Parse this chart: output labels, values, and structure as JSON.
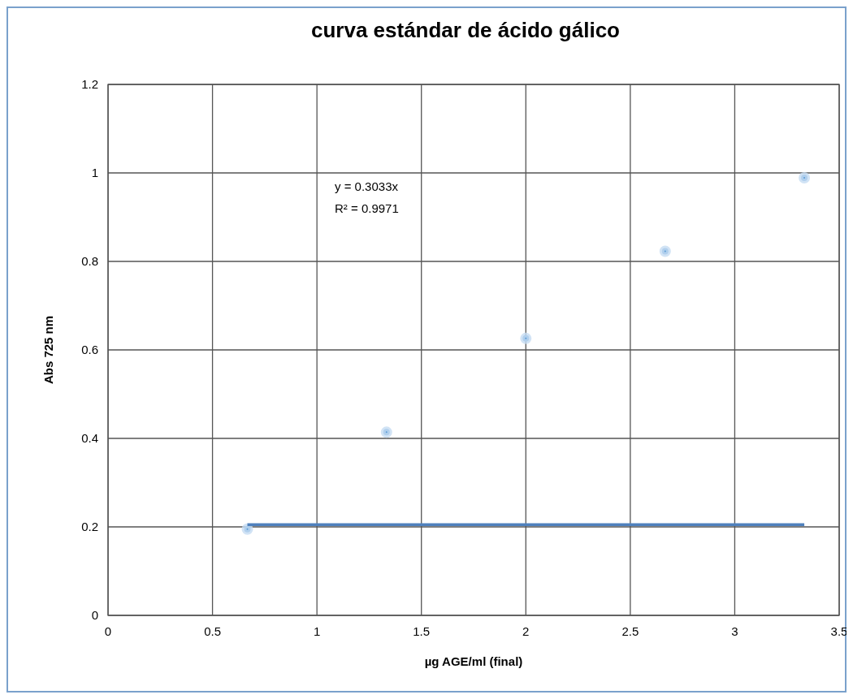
{
  "chart_data": {
    "type": "scatter",
    "title": "curva estándar de ácido gálico",
    "xlabel": "µg AGE/ml (final)",
    "ylabel": "Abs 725 nm",
    "x": [
      0.667,
      1.333,
      2,
      2.667,
      3.333
    ],
    "series": [
      {
        "color": "#5b9bd5",
        "marker": "circle",
        "values": [
          0.195,
          0.414,
          0.626,
          0.823,
          0.989
        ]
      },
      {
        "type": "line",
        "color": "#4f81bd",
        "x": [
          0.667,
          3.333
        ],
        "values": [
          0.205,
          0.205
        ]
      }
    ],
    "annotations": [
      "y = 0.3033x",
      "R² = 0.9971"
    ],
    "xlim": [
      0,
      3.5
    ],
    "xticks": [
      0,
      0.5,
      1,
      1.5,
      2,
      2.5,
      3,
      3.5
    ],
    "ylim": [
      0,
      1.2
    ],
    "yticks": [
      0,
      0.2,
      0.4,
      0.6,
      0.8,
      1,
      1.2
    ],
    "grid": true
  }
}
